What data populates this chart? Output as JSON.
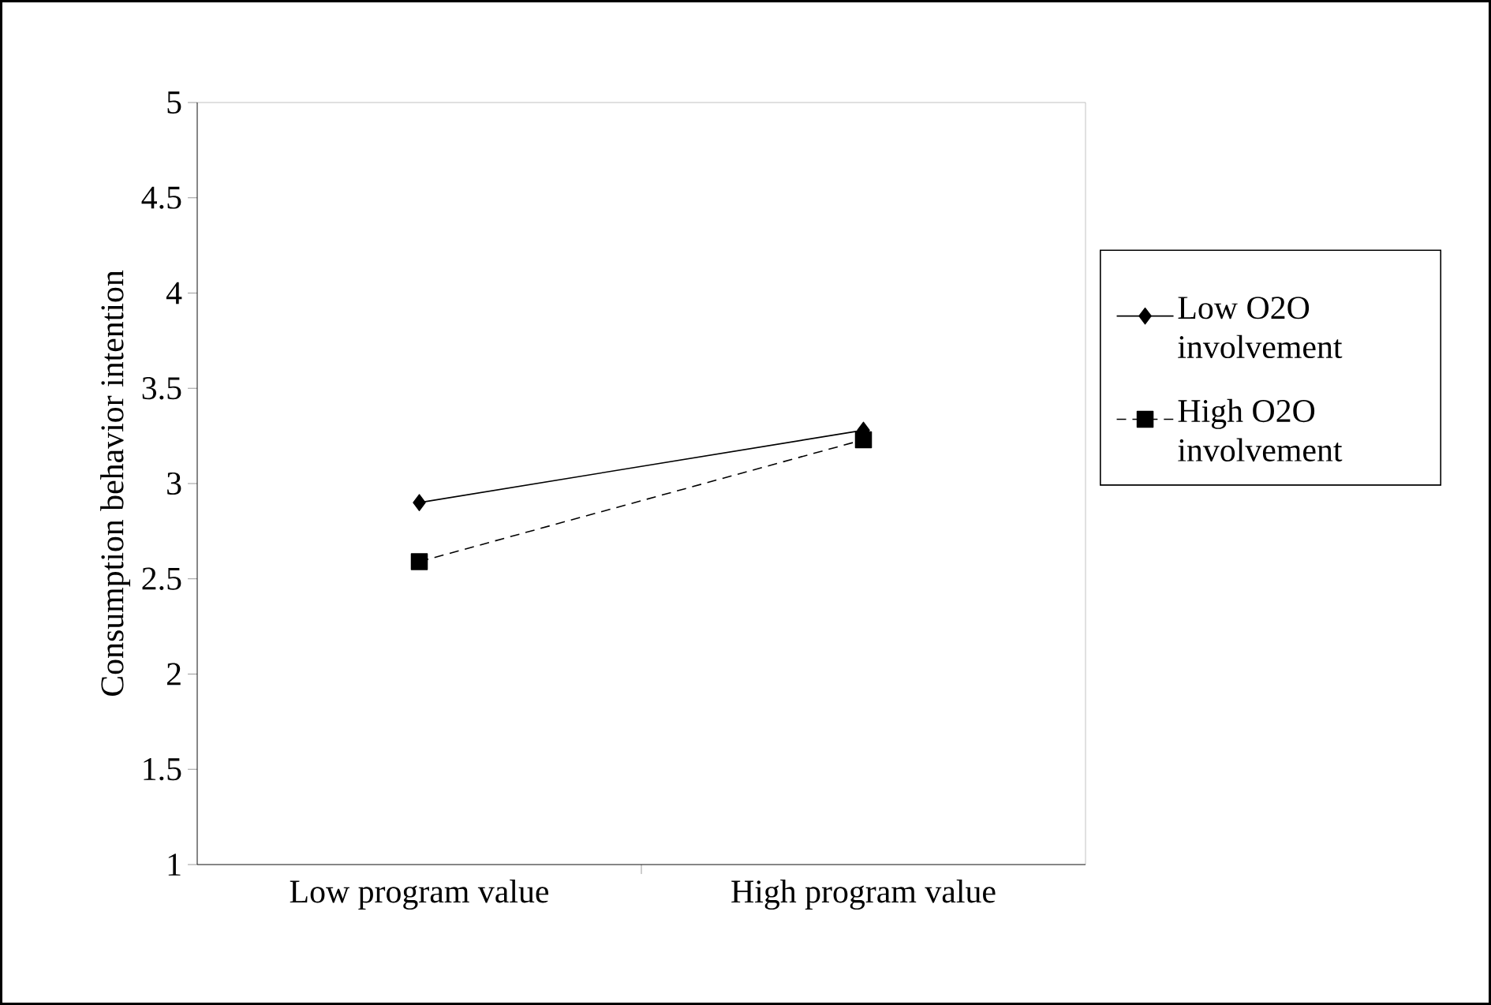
{
  "chart_data": {
    "type": "line",
    "ylabel": "Consumption behavior intention",
    "categories": [
      "Low program value",
      "High program value"
    ],
    "ylim": [
      1,
      5
    ],
    "yticks": [
      1,
      1.5,
      2,
      2.5,
      3,
      3.5,
      4,
      4.5,
      5
    ],
    "legend": "right",
    "series": [
      {
        "name": "Low O2O involvement",
        "color": "#000000",
        "values": [
          2.9,
          3.28
        ],
        "marker": "diamond",
        "line_style": "solid"
      },
      {
        "name": "High O2O involvement",
        "color": "#000000",
        "values": [
          2.59,
          3.23
        ],
        "marker": "square",
        "line_style": "dashed"
      }
    ]
  }
}
